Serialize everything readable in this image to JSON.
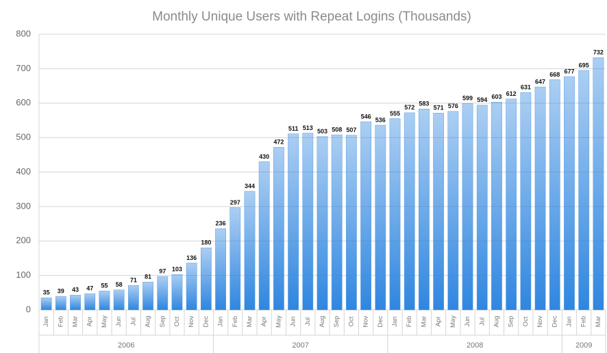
{
  "chart_data": {
    "type": "bar",
    "title": "Monthly Unique Users with Repeat Logins (Thousands)",
    "categories": [
      "Jan",
      "Feb",
      "Mar",
      "Apr",
      "May",
      "Jun",
      "Jul",
      "Aug",
      "Sep",
      "Oct",
      "Nov",
      "Dec",
      "Jan",
      "Feb",
      "Mar",
      "Apr",
      "May",
      "Jun",
      "Jul",
      "Aug",
      "Sep",
      "Oct",
      "Nov",
      "Dec",
      "Jan",
      "Feb",
      "Mar",
      "Apr",
      "May",
      "Jun",
      "Jul",
      "Aug",
      "Sep",
      "Oct",
      "Nov",
      "Dec",
      "Jan",
      "Feb",
      "Mar"
    ],
    "groups": [
      {
        "label": "2006",
        "count": 12
      },
      {
        "label": "2007",
        "count": 12
      },
      {
        "label": "2008",
        "count": 12
      },
      {
        "label": "2009",
        "count": 3
      }
    ],
    "values": [
      35,
      39,
      43,
      47,
      55,
      58,
      71,
      81,
      97,
      103,
      136,
      180,
      236,
      297,
      344,
      430,
      472,
      511,
      513,
      503,
      508,
      507,
      546,
      536,
      555,
      572,
      583,
      571,
      576,
      599,
      594,
      603,
      612,
      631,
      647,
      668,
      677,
      695,
      732
    ],
    "color": "#2f86e0",
    "ylim": [
      0,
      800
    ],
    "yticks": [
      0,
      100,
      200,
      300,
      400,
      500,
      600,
      700,
      800
    ],
    "grid": true
  }
}
